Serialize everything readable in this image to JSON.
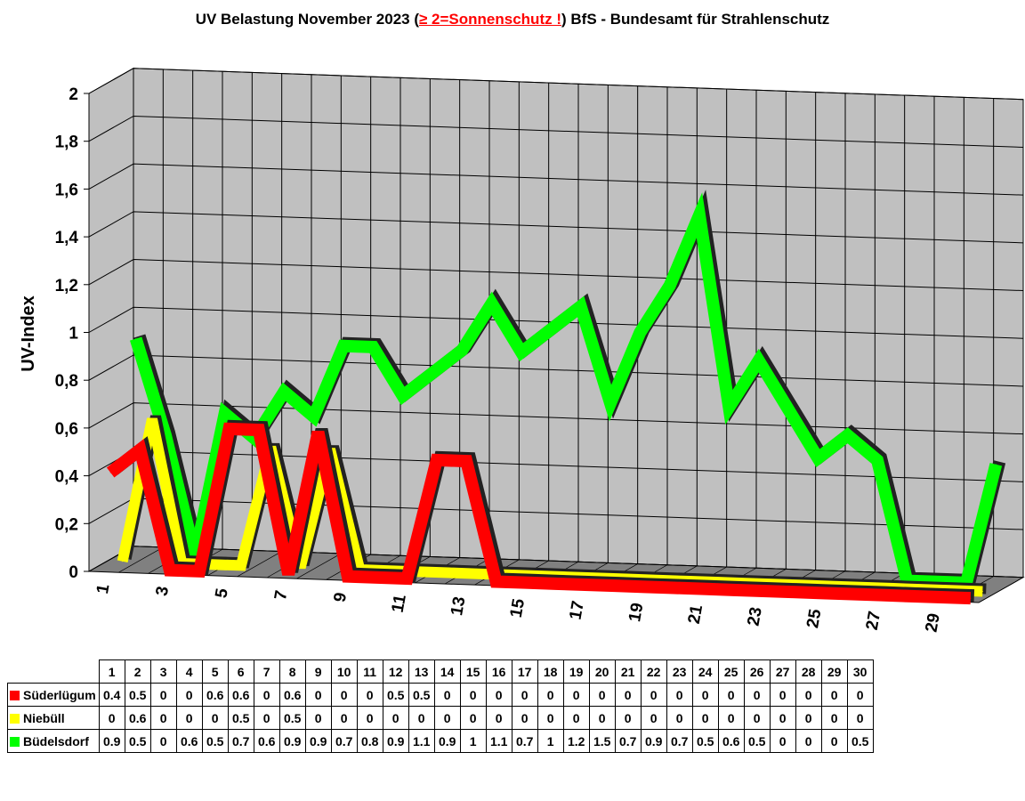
{
  "chart_data": {
    "type": "line",
    "title_pre": "UV Belastung November 2023 (",
    "title_warn": "≥ 2=Sonnenschutz !",
    "title_post": ") BfS - Bundesamt für Strahlenschutz",
    "ylabel": "UV-Index",
    "ylim": [
      0,
      2
    ],
    "yticks": [
      "0",
      "0,2",
      "0,4",
      "0,6",
      "0,8",
      "1",
      "1,2",
      "1,4",
      "1,6",
      "1,8",
      "2"
    ],
    "categories": [
      "1",
      "2",
      "3",
      "4",
      "5",
      "6",
      "7",
      "8",
      "9",
      "10",
      "11",
      "12",
      "13",
      "14",
      "15",
      "16",
      "17",
      "18",
      "19",
      "20",
      "21",
      "22",
      "23",
      "24",
      "25",
      "26",
      "27",
      "28",
      "29",
      "30"
    ],
    "xtick_labels": [
      "1",
      "3",
      "5",
      "7",
      "9",
      "11",
      "13",
      "15",
      "17",
      "19",
      "21",
      "23",
      "25",
      "27",
      "29"
    ],
    "grid": true,
    "style": "3d-line",
    "series": [
      {
        "name": "Süderlügum",
        "color": "#ff0000",
        "values": [
          0.4,
          0.5,
          0,
          0,
          0.6,
          0.6,
          0,
          0.6,
          0,
          0,
          0,
          0.5,
          0.5,
          0,
          0,
          0,
          0,
          0,
          0,
          0,
          0,
          0,
          0,
          0,
          0,
          0,
          0,
          0,
          0,
          0
        ]
      },
      {
        "name": "Niebüll",
        "color": "#ffff00",
        "values": [
          0,
          0.6,
          0,
          0,
          0,
          0.5,
          0,
          0.5,
          0,
          0,
          0,
          0,
          0,
          0,
          0,
          0,
          0,
          0,
          0,
          0,
          0,
          0,
          0,
          0,
          0,
          0,
          0,
          0,
          0,
          0
        ]
      },
      {
        "name": "Büdelsdorf",
        "color": "#00ff00",
        "values": [
          0.9,
          0.5,
          0,
          0.6,
          0.5,
          0.7,
          0.6,
          0.9,
          0.9,
          0.7,
          0.8,
          0.9,
          1.1,
          0.9,
          1,
          1.1,
          0.7,
          1,
          1.2,
          1.5,
          0.7,
          0.9,
          0.7,
          0.5,
          0.6,
          0.5,
          0,
          0,
          0,
          0.5
        ]
      }
    ],
    "value_display": [
      "0.4",
      "0.5",
      "0",
      "0",
      "0.6",
      "0.6",
      "0",
      "0.6",
      "0",
      "0",
      "0",
      "0.5",
      "0.5",
      "0",
      "0",
      "0",
      "0",
      "0",
      "0",
      "0",
      "0",
      "0",
      "0",
      "0",
      "0",
      "0",
      "0",
      "0",
      "0",
      "0"
    ]
  }
}
